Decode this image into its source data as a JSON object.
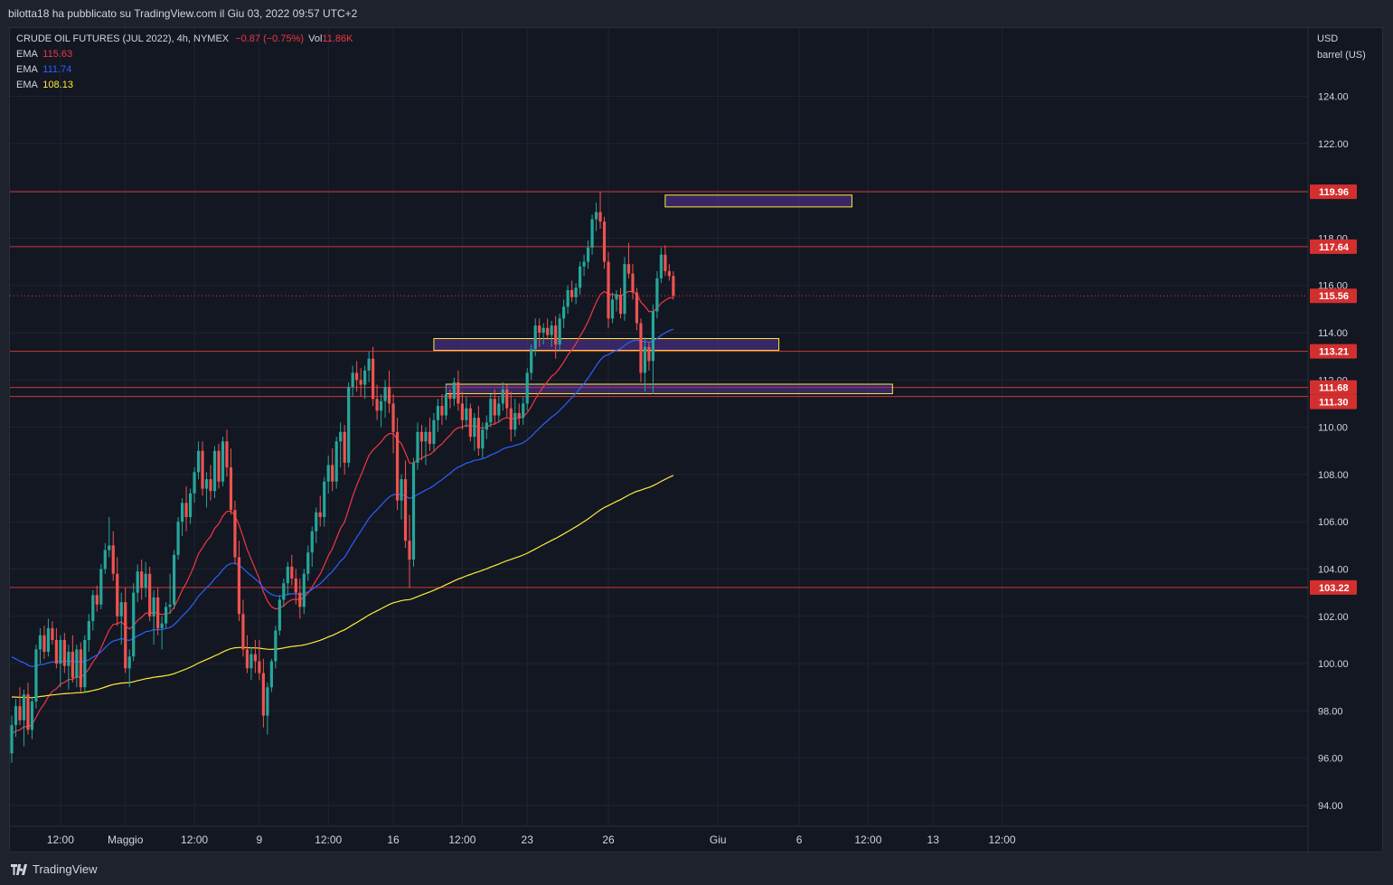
{
  "header": {
    "publisher_line": "bilotta18 ha pubblicato su TradingView.com il Giu 03, 2022 09:57 UTC+2"
  },
  "symbol": {
    "name": "CRUDE OIL FUTURES (JUL 2022), 4h, NYMEX",
    "change": "−0.87 (−0.75%)",
    "vol_label": "Vol",
    "vol_value": "11.86K"
  },
  "indicators": [
    {
      "label": "EMA",
      "value": "115.63",
      "color": "#f23645"
    },
    {
      "label": "EMA",
      "value": "111.74",
      "color": "#2962ff"
    },
    {
      "label": "EMA",
      "value": "108.13",
      "color": "#ffeb3b"
    }
  ],
  "axis": {
    "currency": "USD",
    "unit": "barrel (US)"
  },
  "brand": {
    "name": "TradingView"
  },
  "chart_data": {
    "type": "candlestick",
    "ylim": [
      93.0,
      124.5
    ],
    "y_ticks": [
      94,
      96,
      98,
      100,
      102,
      104,
      106,
      108,
      110,
      112,
      114,
      116,
      118,
      120,
      122,
      124
    ],
    "y_tick_labels": [
      "94.00",
      "96.00",
      "98.00",
      "100.00",
      "102.00",
      "104.00",
      "106.00",
      "108.00",
      "110.00",
      "112.00",
      "114.00",
      "116.00",
      "118.00",
      "120.00",
      "122.00",
      "124.00"
    ],
    "x_labels": [
      {
        "label": "12:00",
        "i": 12
      },
      {
        "label": "Maggio",
        "i": 28
      },
      {
        "label": "12:00",
        "i": 45
      },
      {
        "label": "9",
        "i": 61
      },
      {
        "label": "12:00",
        "i": 78
      },
      {
        "label": "16",
        "i": 94
      },
      {
        "label": "12:00",
        "i": 111
      },
      {
        "label": "23",
        "i": 127
      },
      {
        "label": "26",
        "i": 147
      },
      {
        "label": "Giu",
        "i": 174
      },
      {
        "label": "6",
        "i": 194
      },
      {
        "label": "12:00",
        "i": 211
      },
      {
        "label": "13",
        "i": 227
      },
      {
        "label": "12:00",
        "i": 244
      }
    ],
    "horizontal_levels": [
      119.96,
      117.64,
      113.21,
      111.68,
      111.3,
      103.22
    ],
    "level_labels": [
      "119.96",
      "117.64",
      "113.21",
      "111.68",
      "111.30",
      "103.22"
    ],
    "last_price": 115.56,
    "last_price_label": "115.56",
    "zones": [
      {
        "i1": 161,
        "i2": 207,
        "lo": 119.32,
        "hi": 119.82
      },
      {
        "i1": 104,
        "i2": 189,
        "lo": 113.25,
        "hi": 113.75
      },
      {
        "i1": 107,
        "i2": 217,
        "lo": 111.42,
        "hi": 111.82
      }
    ],
    "ohlc": [
      [
        96.2,
        97.8,
        95.8,
        97.4
      ],
      [
        97.4,
        98.5,
        96.9,
        98.2
      ],
      [
        98.2,
        99.0,
        97.4,
        97.6
      ],
      [
        97.6,
        98.9,
        96.5,
        98.7
      ],
      [
        98.7,
        99.2,
        97.0,
        97.2
      ],
      [
        97.2,
        98.6,
        96.8,
        98.4
      ],
      [
        98.4,
        100.8,
        98.1,
        100.6
      ],
      [
        100.6,
        101.5,
        100.0,
        101.2
      ],
      [
        101.2,
        101.6,
        100.2,
        100.5
      ],
      [
        100.5,
        101.9,
        100.3,
        101.5
      ],
      [
        101.5,
        101.8,
        100.8,
        101.0
      ],
      [
        101.0,
        101.5,
        99.8,
        100.0
      ],
      [
        100.0,
        101.2,
        99.0,
        101.0
      ],
      [
        101.0,
        101.3,
        99.6,
        99.9
      ],
      [
        99.9,
        100.8,
        98.9,
        100.5
      ],
      [
        100.5,
        101.2,
        99.2,
        99.4
      ],
      [
        99.4,
        100.8,
        99.0,
        100.6
      ],
      [
        100.6,
        100.9,
        98.8,
        99.0
      ],
      [
        99.0,
        101.2,
        98.8,
        101.0
      ],
      [
        101.0,
        102.1,
        100.5,
        101.8
      ],
      [
        101.8,
        103.1,
        101.4,
        102.9
      ],
      [
        102.9,
        103.3,
        102.2,
        102.5
      ],
      [
        102.5,
        104.2,
        102.3,
        104.0
      ],
      [
        104.0,
        105.1,
        103.8,
        104.8
      ],
      [
        104.8,
        106.2,
        104.5,
        105.0
      ],
      [
        105.0,
        105.6,
        103.5,
        103.8
      ],
      [
        103.8,
        104.5,
        101.6,
        102.0
      ],
      [
        102.0,
        103.0,
        100.8,
        102.6
      ],
      [
        102.6,
        103.2,
        99.6,
        99.8
      ],
      [
        99.8,
        100.6,
        99.0,
        100.3
      ],
      [
        100.3,
        103.4,
        100.1,
        103.0
      ],
      [
        103.0,
        104.2,
        102.6,
        103.9
      ],
      [
        103.9,
        104.4,
        102.7,
        103.2
      ],
      [
        103.2,
        104.3,
        102.8,
        103.8
      ],
      [
        103.8,
        104.1,
        101.8,
        102.0
      ],
      [
        102.0,
        103.1,
        100.8,
        102.8
      ],
      [
        102.8,
        103.2,
        101.2,
        101.5
      ],
      [
        101.5,
        102.0,
        100.6,
        101.7
      ],
      [
        101.7,
        102.6,
        101.5,
        102.4
      ],
      [
        102.4,
        103.8,
        102.1,
        102.5
      ],
      [
        102.5,
        104.8,
        102.3,
        104.6
      ],
      [
        104.6,
        106.2,
        104.4,
        106.0
      ],
      [
        106.0,
        107.0,
        105.4,
        106.8
      ],
      [
        106.8,
        107.5,
        105.6,
        106.2
      ],
      [
        106.2,
        107.4,
        105.9,
        107.2
      ],
      [
        107.2,
        108.3,
        106.8,
        108.1
      ],
      [
        108.1,
        109.4,
        107.8,
        109.0
      ],
      [
        109.0,
        109.4,
        107.1,
        107.4
      ],
      [
        107.4,
        108.1,
        106.6,
        107.8
      ],
      [
        107.8,
        108.4,
        106.9,
        107.3
      ],
      [
        107.3,
        109.2,
        107.0,
        109.0
      ],
      [
        109.0,
        109.3,
        107.4,
        107.7
      ],
      [
        107.7,
        109.6,
        107.5,
        109.4
      ],
      [
        109.4,
        109.9,
        107.9,
        108.3
      ],
      [
        108.3,
        109.1,
        106.3,
        106.5
      ],
      [
        106.5,
        106.9,
        104.2,
        104.5
      ],
      [
        104.5,
        105.2,
        101.8,
        102.1
      ],
      [
        102.1,
        102.7,
        100.3,
        100.6
      ],
      [
        100.6,
        101.2,
        99.6,
        99.8
      ],
      [
        99.8,
        100.7,
        99.3,
        100.4
      ],
      [
        100.4,
        101.0,
        99.6,
        100.1
      ],
      [
        100.1,
        101.0,
        99.3,
        99.6
      ],
      [
        99.6,
        100.2,
        97.3,
        97.8
      ],
      [
        97.8,
        99.2,
        97.0,
        99.0
      ],
      [
        99.0,
        100.2,
        98.8,
        100.1
      ],
      [
        100.1,
        101.6,
        99.8,
        101.4
      ],
      [
        101.4,
        102.9,
        101.2,
        102.7
      ],
      [
        102.7,
        103.6,
        102.4,
        103.4
      ],
      [
        103.4,
        104.3,
        102.9,
        104.1
      ],
      [
        104.1,
        104.6,
        103.3,
        103.6
      ],
      [
        103.6,
        104.0,
        102.5,
        103.0
      ],
      [
        103.0,
        103.6,
        101.9,
        102.4
      ],
      [
        102.4,
        104.0,
        102.1,
        103.8
      ],
      [
        103.8,
        105.0,
        103.5,
        104.7
      ],
      [
        104.7,
        105.8,
        104.1,
        105.6
      ],
      [
        105.6,
        106.6,
        105.1,
        106.4
      ],
      [
        106.4,
        107.1,
        105.8,
        106.2
      ],
      [
        106.2,
        107.9,
        105.8,
        107.7
      ],
      [
        107.7,
        108.8,
        107.2,
        108.4
      ],
      [
        108.4,
        109.1,
        107.3,
        107.7
      ],
      [
        107.7,
        109.6,
        107.4,
        109.4
      ],
      [
        109.4,
        110.2,
        108.3,
        109.8
      ],
      [
        109.8,
        110.1,
        108.0,
        108.5
      ],
      [
        108.5,
        111.9,
        108.3,
        111.7
      ],
      [
        111.7,
        112.6,
        111.3,
        112.3
      ],
      [
        112.3,
        112.8,
        111.5,
        112.0
      ],
      [
        112.0,
        112.5,
        111.3,
        111.8
      ],
      [
        111.8,
        112.6,
        111.2,
        112.4
      ],
      [
        112.4,
        113.2,
        111.9,
        112.9
      ],
      [
        112.9,
        113.4,
        110.9,
        111.2
      ],
      [
        111.2,
        111.8,
        110.3,
        110.7
      ],
      [
        110.7,
        111.4,
        110.0,
        111.1
      ],
      [
        111.1,
        112.0,
        110.4,
        111.7
      ],
      [
        111.7,
        112.4,
        110.6,
        111.0
      ],
      [
        111.0,
        111.4,
        108.9,
        109.8
      ],
      [
        109.8,
        110.4,
        106.5,
        106.9
      ],
      [
        106.9,
        108.0,
        106.1,
        107.8
      ],
      [
        107.8,
        108.6,
        104.9,
        105.2
      ],
      [
        105.2,
        106.3,
        103.2,
        104.4
      ],
      [
        104.4,
        108.7,
        104.1,
        108.5
      ],
      [
        108.5,
        110.2,
        108.2,
        109.8
      ],
      [
        109.8,
        110.1,
        108.6,
        109.4
      ],
      [
        109.4,
        110.0,
        108.4,
        109.8
      ],
      [
        109.8,
        110.4,
        109.0,
        109.3
      ],
      [
        109.3,
        110.6,
        109.0,
        110.3
      ],
      [
        110.3,
        111.2,
        109.8,
        110.9
      ],
      [
        110.9,
        111.4,
        110.1,
        110.5
      ],
      [
        110.5,
        111.8,
        110.3,
        111.4
      ],
      [
        111.4,
        111.6,
        110.8,
        111.2
      ],
      [
        111.2,
        112.1,
        110.9,
        111.9
      ],
      [
        111.9,
        112.4,
        110.7,
        111.0
      ],
      [
        111.0,
        111.5,
        109.9,
        110.3
      ],
      [
        110.3,
        111.3,
        110.0,
        110.8
      ],
      [
        110.8,
        111.0,
        109.4,
        109.6
      ],
      [
        109.6,
        110.6,
        109.0,
        110.4
      ],
      [
        110.4,
        110.9,
        108.8,
        109.1
      ],
      [
        109.1,
        110.2,
        108.7,
        109.9
      ],
      [
        109.9,
        110.5,
        109.5,
        110.2
      ],
      [
        110.2,
        111.4,
        110.0,
        111.2
      ],
      [
        111.2,
        111.6,
        110.1,
        110.5
      ],
      [
        110.5,
        111.3,
        110.2,
        111.0
      ],
      [
        111.0,
        111.9,
        110.7,
        111.6
      ],
      [
        111.6,
        111.8,
        110.4,
        110.8
      ],
      [
        110.8,
        111.5,
        109.4,
        109.9
      ],
      [
        109.9,
        111.2,
        109.6,
        110.6
      ],
      [
        110.6,
        111.0,
        110.1,
        110.4
      ],
      [
        110.4,
        111.3,
        110.1,
        111.0
      ],
      [
        111.0,
        112.5,
        110.7,
        112.3
      ],
      [
        112.3,
        113.5,
        112.0,
        113.3
      ],
      [
        113.3,
        114.6,
        113.0,
        114.3
      ],
      [
        114.3,
        114.6,
        113.4,
        114.0
      ],
      [
        114.0,
        114.4,
        113.5,
        114.2
      ],
      [
        114.2,
        114.6,
        113.7,
        113.9
      ],
      [
        113.9,
        114.5,
        113.4,
        114.3
      ],
      [
        114.3,
        114.7,
        112.9,
        113.5
      ],
      [
        113.5,
        114.8,
        113.2,
        114.6
      ],
      [
        114.6,
        115.4,
        114.2,
        115.1
      ],
      [
        115.1,
        116.0,
        114.8,
        115.8
      ],
      [
        115.8,
        116.2,
        115.3,
        115.5
      ],
      [
        115.5,
        116.1,
        115.2,
        115.9
      ],
      [
        115.9,
        117.0,
        115.6,
        116.8
      ],
      [
        116.8,
        117.3,
        116.4,
        117.0
      ],
      [
        117.0,
        117.9,
        116.7,
        117.6
      ],
      [
        117.6,
        119.0,
        117.3,
        118.8
      ],
      [
        118.8,
        119.5,
        118.3,
        119.1
      ],
      [
        119.1,
        119.96,
        118.4,
        118.7
      ],
      [
        118.7,
        118.9,
        116.7,
        117.0
      ],
      [
        117.0,
        117.4,
        114.2,
        114.6
      ],
      [
        114.6,
        115.7,
        114.4,
        115.4
      ],
      [
        115.4,
        115.8,
        114.9,
        115.6
      ],
      [
        115.6,
        115.9,
        114.6,
        114.8
      ],
      [
        114.8,
        117.2,
        114.5,
        116.9
      ],
      [
        116.9,
        117.8,
        116.3,
        116.5
      ],
      [
        116.5,
        116.9,
        115.4,
        115.7
      ],
      [
        115.7,
        115.9,
        114.1,
        114.4
      ],
      [
        114.4,
        114.6,
        111.9,
        112.3
      ],
      [
        112.3,
        113.8,
        111.5,
        113.4
      ],
      [
        113.4,
        113.6,
        112.4,
        112.8
      ],
      [
        112.8,
        115.2,
        111.4,
        114.9
      ],
      [
        114.9,
        116.6,
        114.6,
        116.3
      ],
      [
        116.3,
        117.6,
        116.1,
        117.3
      ],
      [
        117.3,
        117.7,
        116.4,
        116.6
      ],
      [
        116.6,
        116.9,
        116.2,
        116.4
      ],
      [
        116.4,
        116.6,
        115.4,
        115.56
      ]
    ]
  }
}
